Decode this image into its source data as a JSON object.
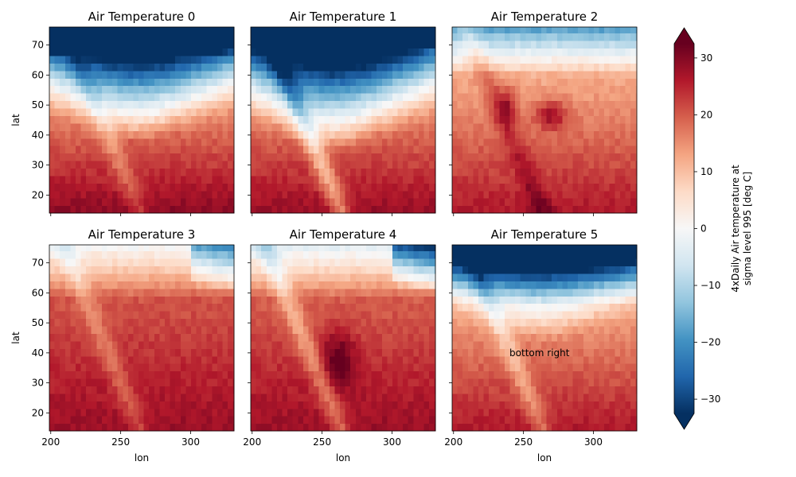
{
  "chart_data": {
    "type": "heatmap",
    "panels": [
      {
        "title": "Air Temperature 0",
        "pattern": "cold_north_deep",
        "annotation": ""
      },
      {
        "title": "Air Temperature 1",
        "pattern": "cold_north_deep_v",
        "annotation": ""
      },
      {
        "title": "Air Temperature 2",
        "pattern": "mild_north",
        "annotation": ""
      },
      {
        "title": "Air Temperature 3",
        "pattern": "warm_broad",
        "annotation": ""
      },
      {
        "title": "Air Temperature 4",
        "pattern": "warm_hot_core",
        "annotation": ""
      },
      {
        "title": "Air Temperature 5",
        "pattern": "cold_north_mid",
        "annotation": "bottom right"
      }
    ],
    "xlabel": "lon",
    "ylabel": "lat",
    "xlim": [
      199,
      331
    ],
    "ylim": [
      14,
      76
    ],
    "x_ticks": [
      200,
      250,
      300
    ],
    "y_ticks": [
      20,
      30,
      40,
      50,
      60,
      70
    ],
    "grid_lon_step": 3.75,
    "grid_lat_step": 2.5,
    "colormap": "RdBu_r",
    "colorbar": {
      "label_lines": [
        "4xDaily Air temperature at",
        "sigma level 995 [deg C]"
      ],
      "vmin": -32.5,
      "vmax": 32.5,
      "ticks": [
        -30,
        -20,
        -10,
        0,
        10,
        20,
        30
      ],
      "tick_labels": [
        "−30",
        "−20",
        "−10",
        "0",
        "10",
        "20",
        "30"
      ],
      "extend": "both"
    }
  }
}
